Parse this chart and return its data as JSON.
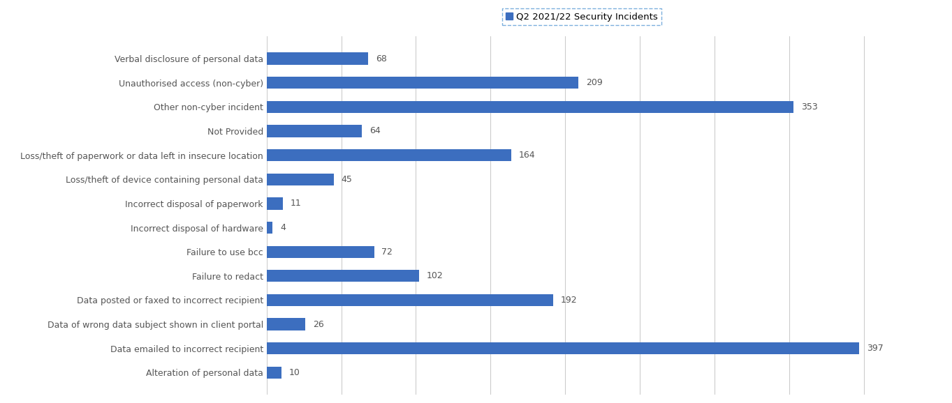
{
  "categories": [
    "Verbal disclosure of personal data",
    "Unauthorised access (non-cyber)",
    "Other non-cyber incident",
    "Not Provided",
    "Loss/theft of paperwork or data left in insecure location",
    "Loss/theft of device containing personal data",
    "Incorrect disposal of paperwork",
    "Incorrect disposal of hardware",
    "Failure to use bcc",
    "Failure to redact",
    "Data posted or faxed to incorrect recipient",
    "Data of wrong data subject shown in client portal",
    "Data emailed to incorrect recipient",
    "Alteration of personal data"
  ],
  "values": [
    68,
    209,
    353,
    64,
    164,
    45,
    11,
    4,
    72,
    102,
    192,
    26,
    397,
    10
  ],
  "bar_color": "#3c6ebf",
  "legend_label": "Q2 2021/22 Security Incidents",
  "background_color": "#ffffff",
  "grid_color": "#cccccc",
  "label_color": "#555555",
  "value_label_color": "#555555",
  "bar_height": 0.5,
  "xlim": [
    0,
    440
  ],
  "figsize": [
    13.63,
    5.78
  ],
  "dpi": 100,
  "label_fontsize": 9,
  "value_fontsize": 9,
  "legend_fontsize": 9.5
}
